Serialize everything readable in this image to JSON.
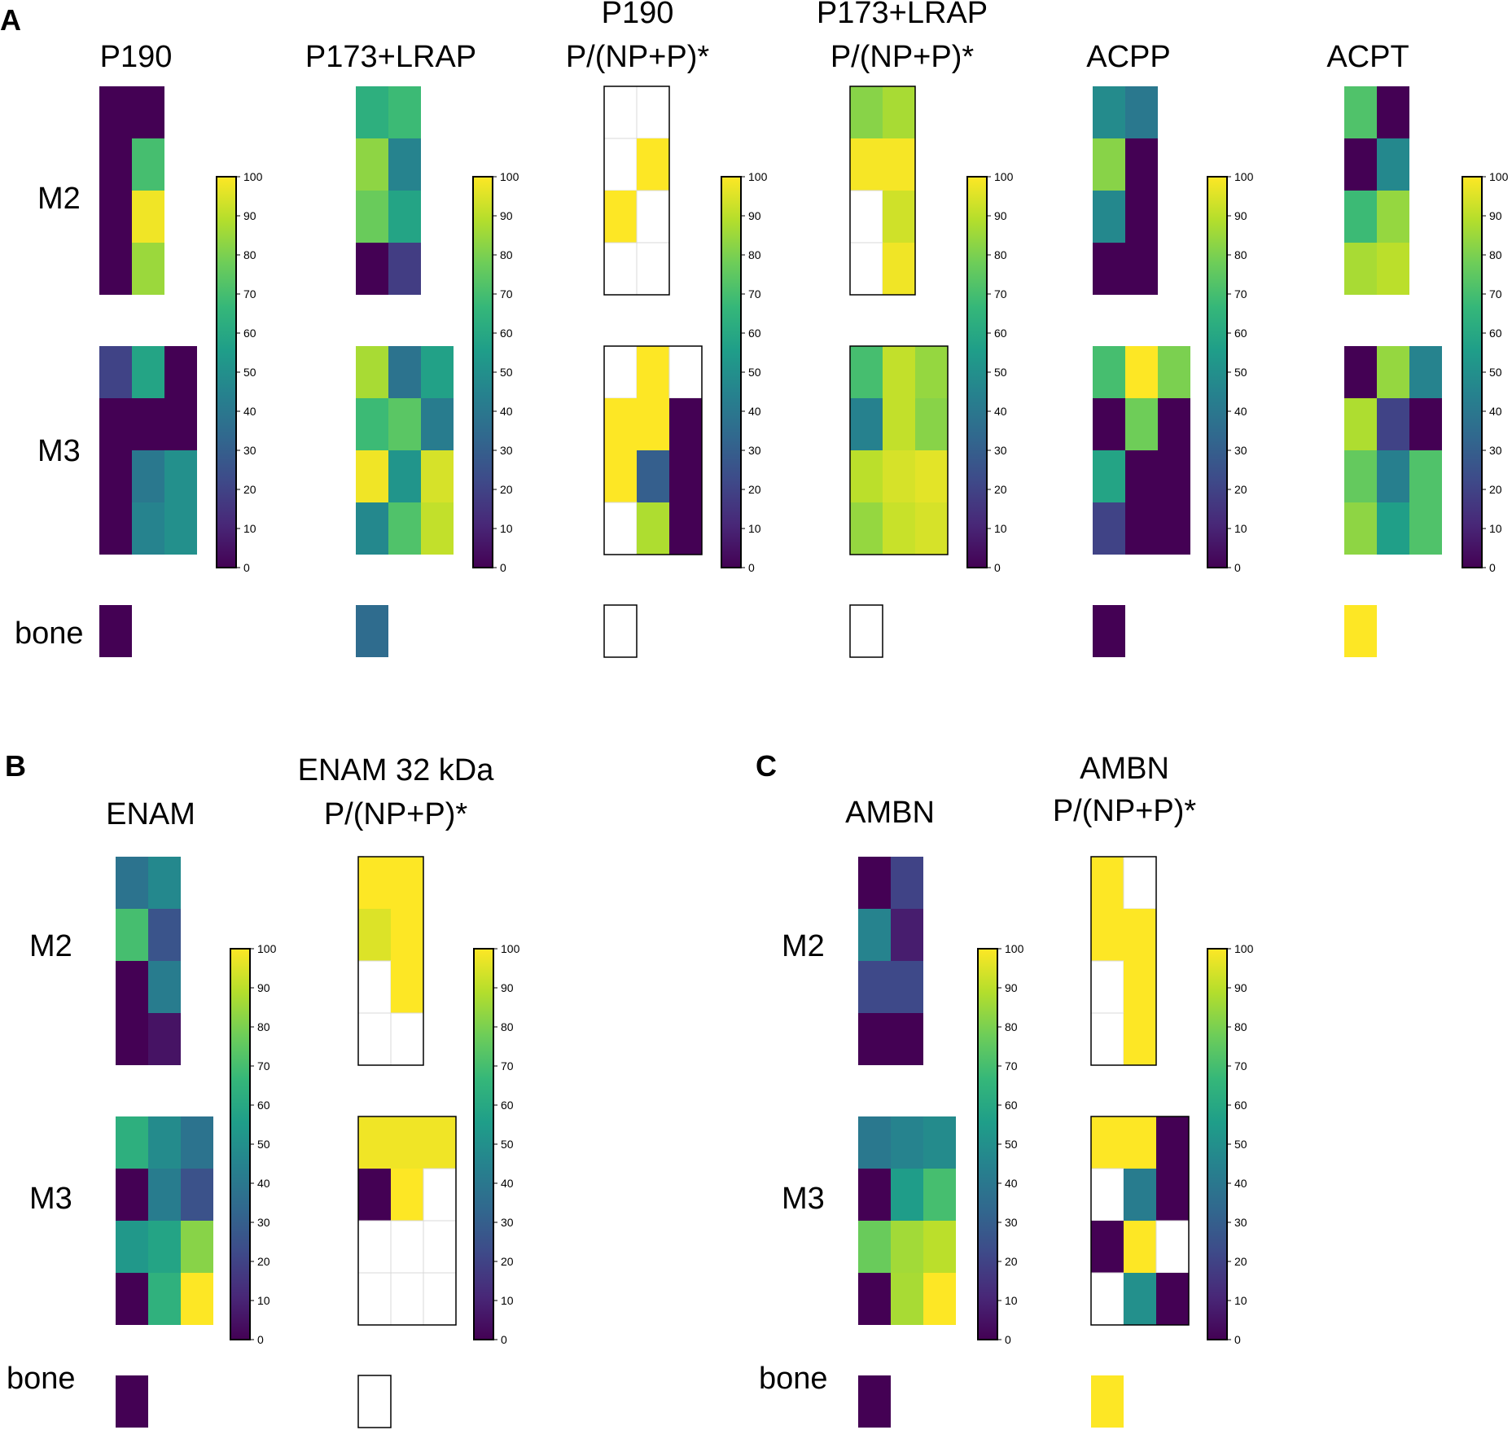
{
  "figure": {
    "panel_letters": {
      "A": "A",
      "B": "B",
      "C": "C"
    },
    "row_labels": {
      "M2": "M2",
      "M3": "M3",
      "bone": "bone"
    },
    "colormap": "viridis",
    "colorbar": {
      "min": 0,
      "max": 100,
      "ticks": [
        "0",
        "10",
        "20",
        "30",
        "40",
        "50",
        "60",
        "70",
        "80",
        "90",
        "100"
      ]
    }
  },
  "chart_data": [
    {
      "type": "heatmap",
      "panel": "A",
      "title_lines": [
        "P190"
      ],
      "style": "plain",
      "value_range": [
        0,
        100
      ],
      "M2": [
        [
          0,
          0
        ],
        [
          0,
          70
        ],
        [
          0,
          98
        ],
        [
          0,
          85
        ]
      ],
      "M3": [
        [
          20,
          58,
          0
        ],
        [
          0,
          0,
          0
        ],
        [
          0,
          40,
          50
        ],
        [
          0,
          45,
          50
        ]
      ],
      "bone": 0
    },
    {
      "type": "heatmap",
      "panel": "A",
      "title_lines": [
        "P173+LRAP"
      ],
      "style": "plain",
      "value_range": [
        0,
        100
      ],
      "M2": [
        [
          63,
          68
        ],
        [
          83,
          45
        ],
        [
          77,
          58
        ],
        [
          0,
          18
        ]
      ],
      "M3": [
        [
          87,
          38,
          57
        ],
        [
          68,
          74,
          42
        ],
        [
          98,
          52,
          94
        ],
        [
          47,
          72,
          91
        ]
      ],
      "bone": 35
    },
    {
      "type": "heatmap",
      "panel": "A",
      "title_lines": [
        "P190",
        "P/(NP+P)*"
      ],
      "style": "boxed",
      "value_range": [
        0,
        100
      ],
      "M2": [
        [
          null,
          null
        ],
        [
          null,
          100
        ],
        [
          100,
          null
        ],
        [
          null,
          null
        ]
      ],
      "M3": [
        [
          null,
          100,
          null
        ],
        [
          100,
          100,
          0
        ],
        [
          100,
          30,
          0
        ],
        [
          null,
          88,
          0
        ]
      ],
      "bone": null
    },
    {
      "type": "heatmap",
      "panel": "A",
      "title_lines": [
        "P173+LRAP",
        "P/(NP+P)*"
      ],
      "style": "boxed",
      "value_range": [
        0,
        100
      ],
      "M2": [
        [
          82,
          87
        ],
        [
          99,
          99
        ],
        [
          null,
          93
        ],
        [
          null,
          98
        ]
      ],
      "M3": [
        [
          70,
          91,
          84
        ],
        [
          44,
          91,
          82
        ],
        [
          90,
          94,
          96
        ],
        [
          84,
          92,
          94
        ]
      ],
      "bone": null
    },
    {
      "type": "heatmap",
      "panel": "A",
      "title_lines": [
        "ACPP"
      ],
      "style": "plain",
      "value_range": [
        0,
        100
      ],
      "M2": [
        [
          48,
          40
        ],
        [
          82,
          0
        ],
        [
          47,
          0
        ],
        [
          0,
          0
        ]
      ],
      "M3": [
        [
          70,
          100,
          80
        ],
        [
          0,
          78,
          0
        ],
        [
          58,
          0,
          0
        ],
        [
          20,
          0,
          0
        ]
      ],
      "bone": 0
    },
    {
      "type": "heatmap",
      "panel": "A",
      "title_lines": [
        "ACPT"
      ],
      "style": "plain",
      "value_range": [
        0,
        100
      ],
      "M2": [
        [
          72,
          0
        ],
        [
          0,
          47
        ],
        [
          68,
          84
        ],
        [
          87,
          90
        ]
      ],
      "M3": [
        [
          0,
          84,
          45
        ],
        [
          88,
          20,
          0
        ],
        [
          76,
          43,
          72
        ],
        [
          83,
          56,
          72
        ]
      ],
      "bone": 100
    },
    {
      "type": "heatmap",
      "panel": "B",
      "title_lines": [
        "ENAM"
      ],
      "style": "plain",
      "value_range": [
        0,
        100
      ],
      "M2": [
        [
          38,
          47
        ],
        [
          70,
          26
        ],
        [
          0,
          42
        ],
        [
          0,
          5
        ]
      ],
      "M3": [
        [
          63,
          48,
          38
        ],
        [
          0,
          42,
          25
        ],
        [
          53,
          58,
          82
        ],
        [
          0,
          64,
          100
        ]
      ],
      "bone": 0
    },
    {
      "type": "heatmap",
      "panel": "B",
      "title_lines": [
        "ENAM 32 kDa",
        "P/(NP+P)*"
      ],
      "style": "boxed",
      "value_range": [
        0,
        100
      ],
      "M2": [
        [
          100,
          100
        ],
        [
          95,
          100
        ],
        [
          null,
          100
        ],
        [
          null,
          null
        ]
      ],
      "M3": [
        [
          98,
          98,
          98
        ],
        [
          0,
          100,
          null
        ],
        [
          null,
          null,
          null
        ],
        [
          null,
          null,
          null
        ]
      ],
      "bone": null
    },
    {
      "type": "heatmap",
      "panel": "C",
      "title_lines": [
        "AMBN"
      ],
      "style": "plain",
      "value_range": [
        0,
        100
      ],
      "M2": [
        [
          0,
          20
        ],
        [
          45,
          8
        ],
        [
          22,
          22
        ],
        [
          0,
          0
        ]
      ],
      "M3": [
        [
          40,
          45,
          48
        ],
        [
          0,
          55,
          70
        ],
        [
          77,
          86,
          90
        ],
        [
          0,
          87,
          100
        ]
      ],
      "bone": 0
    },
    {
      "type": "heatmap",
      "panel": "C",
      "title_lines": [
        "AMBN",
        "P/(NP+P)*"
      ],
      "style": "boxed",
      "value_range": [
        0,
        100
      ],
      "M2": [
        [
          100,
          null
        ],
        [
          100,
          100
        ],
        [
          null,
          100
        ],
        [
          null,
          100
        ]
      ],
      "M3": [
        [
          100,
          100,
          0
        ],
        [
          null,
          42,
          0
        ],
        [
          0,
          100,
          null
        ],
        [
          null,
          50,
          0
        ]
      ],
      "bone": 100
    }
  ]
}
